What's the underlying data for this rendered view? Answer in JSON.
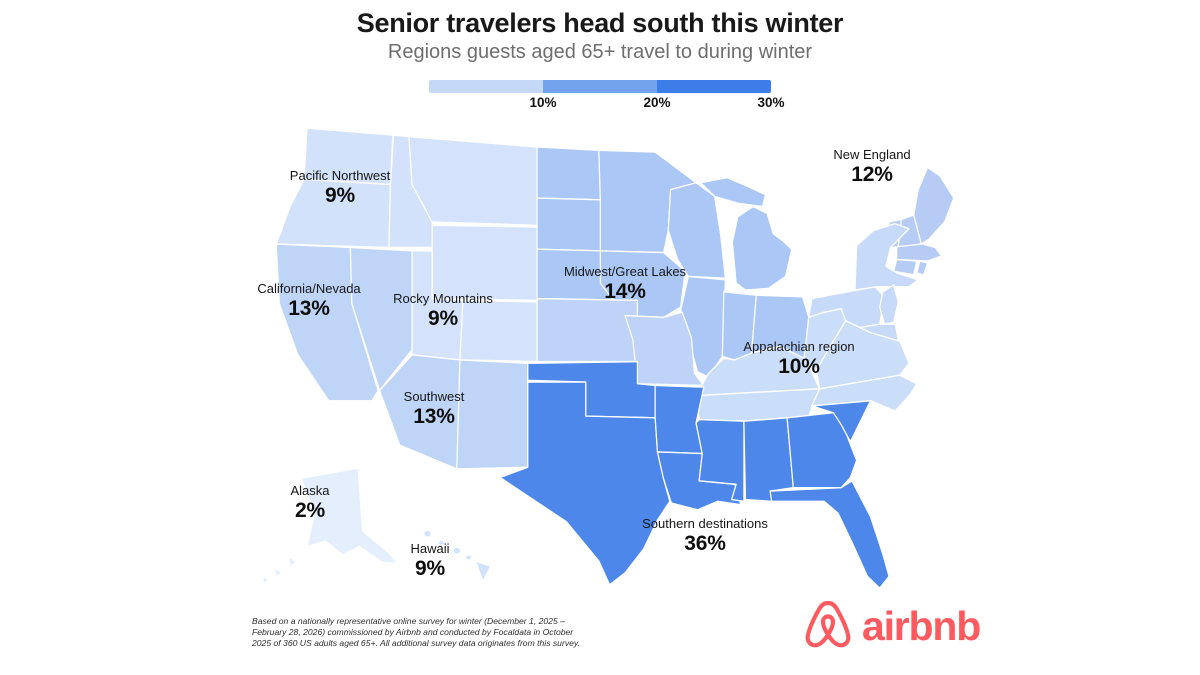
{
  "header": {
    "title": "Senior travelers head south this winter",
    "subtitle": "Regions guests aged 65+ travel to during winter"
  },
  "footnote": "Based on a nationally representative online survey for winter (December 1, 2025 – February 28, 2026) commissioned by Airbnb and conducted by Focaldata in October 2025 of 360 US adults aged 65+. All additional survey data originates from this survey.",
  "logo": {
    "wordmark": "airbnb",
    "icon": "airbnb-belo-icon",
    "color": "#FF5A5F"
  },
  "chart_data": {
    "type": "choropleth",
    "title": "Senior travelers head south this winter",
    "subtitle": "Regions guests aged 65+ travel to during winter",
    "unit": "%",
    "legend_scale": {
      "ticks": [
        "10%",
        "20%",
        "30%"
      ],
      "colors": [
        "#c4d8f8",
        "#74a3ee",
        "#3d7de9"
      ]
    },
    "regions": [
      {
        "id": "pacific_northwest",
        "label": "Pacific Northwest",
        "value": 9,
        "display": "9%",
        "color": "#d2e2fb"
      },
      {
        "id": "california_nevada",
        "label": "California/Nevada",
        "value": 13,
        "display": "13%",
        "color": "#bfd5f8"
      },
      {
        "id": "rocky_mountains",
        "label": "Rocky Mountains",
        "value": 9,
        "display": "9%",
        "color": "#d4e3fb"
      },
      {
        "id": "southwest",
        "label": "Southwest",
        "value": 13,
        "display": "13%",
        "color": "#bfd5f8"
      },
      {
        "id": "midwest_great_lakes",
        "label": "Midwest/Great Lakes",
        "value": 14,
        "display": "14%",
        "color": "#abc7f5"
      },
      {
        "id": "central_plains",
        "label": "",
        "value": null,
        "display": "",
        "color": "#bed3f7"
      },
      {
        "id": "new_england",
        "label": "New England",
        "value": 12,
        "display": "12%",
        "color": "#b6ccf4"
      },
      {
        "id": "mid_atlantic",
        "label": "",
        "value": null,
        "display": "",
        "color": "#c7daf9"
      },
      {
        "id": "appalachian",
        "label": "Appalachian region",
        "value": 10,
        "display": "10%",
        "color": "#cbdef9"
      },
      {
        "id": "southern",
        "label": "Southern destinations",
        "value": 36,
        "display": "36%",
        "color": "#4e87ea"
      },
      {
        "id": "alaska",
        "label": "Alaska",
        "value": 2,
        "display": "2%",
        "color": "#e4eefc"
      },
      {
        "id": "hawaii",
        "label": "Hawaii",
        "value": 9,
        "display": "9%",
        "color": "#d2e2fb"
      }
    ]
  }
}
